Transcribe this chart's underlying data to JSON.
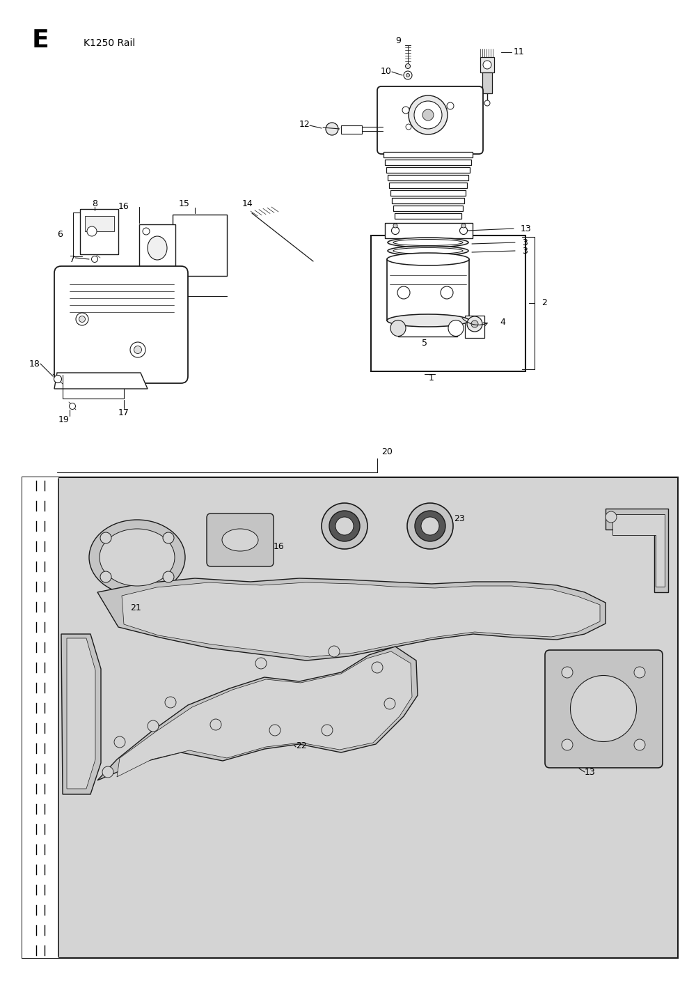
{
  "title_letter": "E",
  "title_text": "K1250 Rail",
  "bg_color": "#ffffff",
  "gasket_bg": "#d4d4d4",
  "part_line_color": "#1a1a1a",
  "label_fontsize": 9,
  "title_fontsize": 20,
  "subtitle_fontsize": 11
}
